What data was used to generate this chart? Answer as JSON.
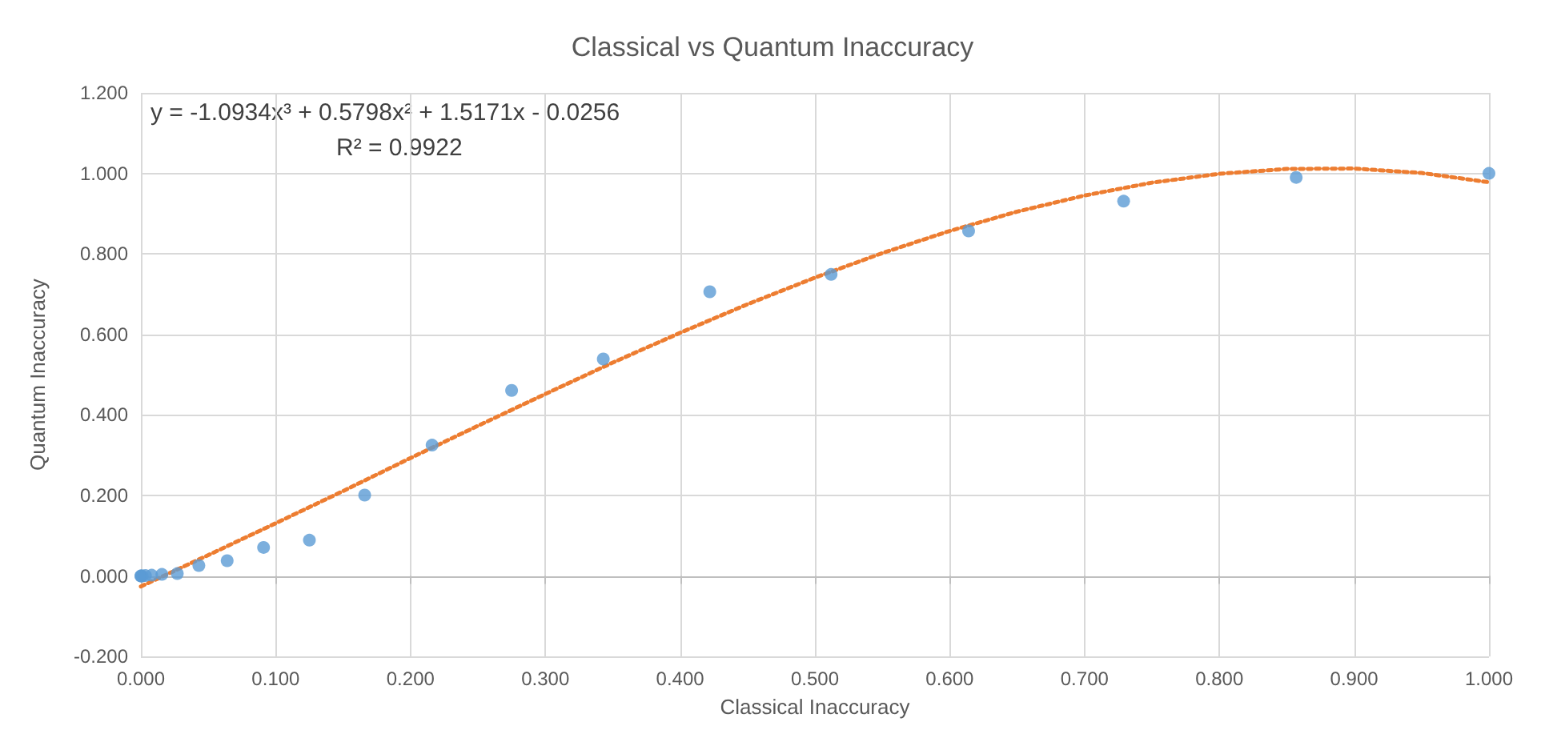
{
  "chart_data": {
    "type": "scatter",
    "title": "Classical vs Quantum Inaccuracy",
    "xlabel": "Classical Inaccuracy",
    "ylabel": "Quantum Inaccuracy",
    "annotations": [
      "y = -1.0934x³ + 0.5798x² + 1.5171x - 0.0256",
      "R² = 0.9922"
    ],
    "series": [
      {
        "color": "#5b9bd5",
        "x": [
          0,
          0.000125,
          0.001,
          0.003375,
          0.008,
          0.0156,
          0.027,
          0.043,
          0.064,
          0.091,
          0.125,
          0.166,
          0.216,
          0.275,
          0.343,
          0.422,
          0.512,
          0.614,
          0.729,
          0.857,
          1.0
        ],
        "values": [
          0,
          0,
          0,
          0.001,
          0.002,
          0.004,
          0.006,
          0.026,
          0.038,
          0.071,
          0.089,
          0.201,
          0.325,
          0.461,
          0.539,
          0.706,
          0.749,
          0.857,
          0.931,
          0.99,
          1.0
        ]
      },
      {
        "type": "line",
        "color": "#ed7d31",
        "line_style": "dotted",
        "marker": "none",
        "x": [
          0,
          0.05,
          0.1,
          0.15,
          0.2,
          0.25,
          0.3,
          0.35,
          0.4,
          0.45,
          0.5,
          0.55,
          0.6,
          0.65,
          0.7,
          0.75,
          0.8,
          0.85,
          0.9,
          0.95,
          1.0
        ],
        "values": [
          -0.026,
          0.052,
          0.131,
          0.211,
          0.293,
          0.373,
          0.452,
          0.53,
          0.604,
          0.675,
          0.741,
          0.802,
          0.857,
          0.905,
          0.945,
          0.977,
          0.999,
          1.011,
          1.012,
          1.001,
          0.978
        ]
      }
    ],
    "marker": "circle",
    "grid": true,
    "xlim": [
      0,
      1.0
    ],
    "xticks": [
      {
        "value": 0,
        "label": "0.000"
      },
      {
        "value": 0.1,
        "label": "0.100"
      },
      {
        "value": 0.2,
        "label": "0.200"
      },
      {
        "value": 0.3,
        "label": "0.300"
      },
      {
        "value": 0.4,
        "label": "0.400"
      },
      {
        "value": 0.5,
        "label": "0.500"
      },
      {
        "value": 0.6,
        "label": "0.600"
      },
      {
        "value": 0.7,
        "label": "0.700"
      },
      {
        "value": 0.8,
        "label": "0.800"
      },
      {
        "value": 0.9,
        "label": "0.900"
      },
      {
        "value": 1.0,
        "label": "1.000"
      }
    ],
    "ylim": [
      -0.2,
      1.2
    ],
    "yticks": [
      {
        "value": -0.2,
        "label": "-0.200"
      },
      {
        "value": 0,
        "label": "0.000"
      },
      {
        "value": 0.2,
        "label": "0.200"
      },
      {
        "value": 0.4,
        "label": "0.400"
      },
      {
        "value": 0.6,
        "label": "0.600"
      },
      {
        "value": 0.8,
        "label": "0.800"
      },
      {
        "value": 1.0,
        "label": "1.000"
      },
      {
        "value": 1.2,
        "label": "1.200"
      }
    ]
  }
}
